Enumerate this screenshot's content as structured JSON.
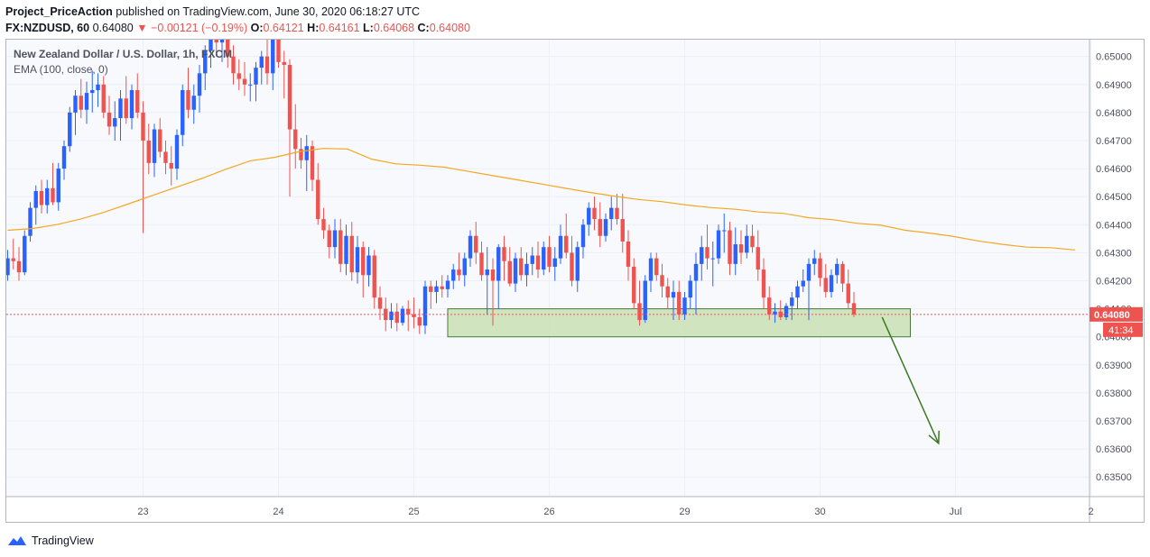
{
  "header": {
    "author": "Project_PriceAction",
    "published": "published on TradingView.com, June 30, 2020 06:18:27 UTC",
    "symbol": "FX:NZDUSD, 60",
    "last": "0.64080",
    "change": "−0.00121 (−0.19%)",
    "o_label": "O:",
    "o": "0.64121",
    "h_label": "H:",
    "h": "0.64161",
    "l_label": "L:",
    "l": "0.64068",
    "c_label": "C:",
    "c": "0.64080"
  },
  "legend": {
    "title": "New Zealand Dollar / U.S. Dollar, 1h, FXCM",
    "ema": "EMA (100, close, 0)"
  },
  "price_tag": "0.64080",
  "countdown_tag": "41:34",
  "footer": {
    "brand": "TradingView"
  },
  "colors": {
    "up": "#2962ff",
    "down": "#ef5350",
    "ema": "#f5a623",
    "zone_fill": "#c8e0b4",
    "zone_stroke": "#4a7a3a",
    "arrow": "#3a7a1e",
    "price_line": "#ef5350",
    "grid": "#f0f3fa"
  },
  "chart_data": {
    "type": "candlestick",
    "title": "New Zealand Dollar / U.S. Dollar, 1h, FXCM",
    "ylim": [
      0.6343,
      0.6506
    ],
    "y_ticks": [
      0.635,
      0.636,
      0.637,
      0.638,
      0.639,
      0.64,
      0.641,
      0.642,
      0.643,
      0.644,
      0.645,
      0.646,
      0.647,
      0.648,
      0.649,
      0.65
    ],
    "x_ticks": [
      {
        "label": "23",
        "bar": 24
      },
      {
        "label": "24",
        "bar": 48
      },
      {
        "label": "25",
        "bar": 72
      },
      {
        "label": "26",
        "bar": 96
      },
      {
        "label": "29",
        "bar": 120
      },
      {
        "label": "30",
        "bar": 144
      },
      {
        "label": "Jul",
        "bar": 168
      },
      {
        "label": "2",
        "bar": 192
      }
    ],
    "bar_count_visible": 193,
    "candles": [
      [
        0.6422,
        0.6431,
        0.642,
        0.6428
      ],
      [
        0.6428,
        0.6435,
        0.6424,
        0.6427
      ],
      [
        0.6427,
        0.6432,
        0.642,
        0.6423
      ],
      [
        0.6423,
        0.6438,
        0.6422,
        0.6436
      ],
      [
        0.6436,
        0.6448,
        0.6434,
        0.6446
      ],
      [
        0.6446,
        0.6454,
        0.644,
        0.6452
      ],
      [
        0.6452,
        0.6456,
        0.6444,
        0.6447
      ],
      [
        0.6447,
        0.6456,
        0.6444,
        0.6453
      ],
      [
        0.6453,
        0.6462,
        0.6447,
        0.6448
      ],
      [
        0.6448,
        0.6462,
        0.6445,
        0.646
      ],
      [
        0.646,
        0.647,
        0.6456,
        0.6468
      ],
      [
        0.6468,
        0.6482,
        0.6466,
        0.648
      ],
      [
        0.648,
        0.6488,
        0.6472,
        0.6486
      ],
      [
        0.6486,
        0.6492,
        0.6478,
        0.6481
      ],
      [
        0.6481,
        0.6491,
        0.6476,
        0.6487
      ],
      [
        0.6487,
        0.6495,
        0.648,
        0.6488
      ],
      [
        0.6488,
        0.6494,
        0.6482,
        0.649
      ],
      [
        0.649,
        0.6493,
        0.6478,
        0.648
      ],
      [
        0.648,
        0.6486,
        0.6472,
        0.6475
      ],
      [
        0.6475,
        0.6484,
        0.647,
        0.6478
      ],
      [
        0.6478,
        0.6488,
        0.647,
        0.6485
      ],
      [
        0.6485,
        0.6493,
        0.6476,
        0.6478
      ],
      [
        0.6478,
        0.649,
        0.6474,
        0.6488
      ],
      [
        0.6488,
        0.6494,
        0.6478,
        0.648
      ],
      [
        0.648,
        0.6484,
        0.6437,
        0.647
      ],
      [
        0.647,
        0.6476,
        0.6458,
        0.6462
      ],
      [
        0.6462,
        0.6476,
        0.6457,
        0.6474
      ],
      [
        0.6474,
        0.6478,
        0.6464,
        0.6466
      ],
      [
        0.6466,
        0.647,
        0.6458,
        0.6462
      ],
      [
        0.6462,
        0.6468,
        0.6454,
        0.646
      ],
      [
        0.646,
        0.6474,
        0.6456,
        0.6472
      ],
      [
        0.6472,
        0.649,
        0.6468,
        0.6488
      ],
      [
        0.6488,
        0.6496,
        0.6478,
        0.6481
      ],
      [
        0.6481,
        0.649,
        0.6476,
        0.6486
      ],
      [
        0.6486,
        0.6497,
        0.648,
        0.6494
      ],
      [
        0.6494,
        0.6504,
        0.6488,
        0.6502
      ],
      [
        0.6502,
        0.6512,
        0.6496,
        0.6508
      ],
      [
        0.6508,
        0.6514,
        0.65,
        0.6505
      ],
      [
        0.6505,
        0.6516,
        0.6498,
        0.6512
      ],
      [
        0.6512,
        0.6516,
        0.6496,
        0.65
      ],
      [
        0.65,
        0.6504,
        0.649,
        0.6494
      ],
      [
        0.6494,
        0.6499,
        0.6488,
        0.6492
      ],
      [
        0.6492,
        0.6498,
        0.6486,
        0.649
      ],
      [
        0.649,
        0.6494,
        0.6484,
        0.649
      ],
      [
        0.649,
        0.6498,
        0.6484,
        0.6496
      ],
      [
        0.6496,
        0.6502,
        0.649,
        0.65
      ],
      [
        0.65,
        0.6506,
        0.649,
        0.6494
      ],
      [
        0.6494,
        0.6508,
        0.6488,
        0.6506
      ],
      [
        0.6506,
        0.651,
        0.6496,
        0.6498
      ],
      [
        0.6498,
        0.6502,
        0.6485,
        0.6497
      ],
      [
        0.6497,
        0.6499,
        0.645,
        0.6474
      ],
      [
        0.6474,
        0.6483,
        0.646,
        0.6467
      ],
      [
        0.6467,
        0.6471,
        0.646,
        0.6463
      ],
      [
        0.6463,
        0.6472,
        0.6452,
        0.6468
      ],
      [
        0.6468,
        0.647,
        0.6452,
        0.6456
      ],
      [
        0.6456,
        0.6462,
        0.644,
        0.6442
      ],
      [
        0.6442,
        0.6446,
        0.6435,
        0.6438
      ],
      [
        0.6438,
        0.644,
        0.6428,
        0.6432
      ],
      [
        0.6432,
        0.6442,
        0.6428,
        0.6438
      ],
      [
        0.6438,
        0.6442,
        0.6423,
        0.6426
      ],
      [
        0.6426,
        0.644,
        0.6422,
        0.6436
      ],
      [
        0.6436,
        0.6441,
        0.642,
        0.6423
      ],
      [
        0.6423,
        0.6436,
        0.6419,
        0.6432
      ],
      [
        0.6432,
        0.6434,
        0.6414,
        0.6422
      ],
      [
        0.6422,
        0.6432,
        0.6418,
        0.6429
      ],
      [
        0.6429,
        0.6431,
        0.641,
        0.6414
      ],
      [
        0.6414,
        0.6418,
        0.6406,
        0.641
      ],
      [
        0.641,
        0.6414,
        0.6402,
        0.6406
      ],
      [
        0.6406,
        0.6412,
        0.6403,
        0.6409
      ],
      [
        0.6409,
        0.6412,
        0.6402,
        0.6405
      ],
      [
        0.6405,
        0.6411,
        0.6404,
        0.641
      ],
      [
        0.641,
        0.6413,
        0.6402,
        0.6408
      ],
      [
        0.6408,
        0.6414,
        0.6403,
        0.6407
      ],
      [
        0.6407,
        0.641,
        0.6401,
        0.6404
      ],
      [
        0.6404,
        0.642,
        0.6401,
        0.6418
      ],
      [
        0.6418,
        0.642,
        0.641,
        0.6416
      ],
      [
        0.6416,
        0.642,
        0.6412,
        0.6418
      ],
      [
        0.6418,
        0.6422,
        0.6414,
        0.6417
      ],
      [
        0.6417,
        0.6422,
        0.6414,
        0.642
      ],
      [
        0.642,
        0.6426,
        0.6417,
        0.6424
      ],
      [
        0.6424,
        0.643,
        0.642,
        0.6422
      ],
      [
        0.6422,
        0.643,
        0.6418,
        0.6428
      ],
      [
        0.6428,
        0.6438,
        0.6425,
        0.6436
      ],
      [
        0.6436,
        0.6441,
        0.6426,
        0.643
      ],
      [
        0.643,
        0.6434,
        0.642,
        0.6422
      ],
      [
        0.6422,
        0.6432,
        0.6408,
        0.6424
      ],
      [
        0.6424,
        0.6428,
        0.6404,
        0.642
      ],
      [
        0.642,
        0.6433,
        0.641,
        0.6432
      ],
      [
        0.6432,
        0.6436,
        0.642,
        0.6427
      ],
      [
        0.6427,
        0.6432,
        0.6418,
        0.6419
      ],
      [
        0.6419,
        0.643,
        0.6416,
        0.6428
      ],
      [
        0.6428,
        0.6432,
        0.642,
        0.6422
      ],
      [
        0.6422,
        0.643,
        0.6418,
        0.6426
      ],
      [
        0.6426,
        0.6432,
        0.6422,
        0.6429
      ],
      [
        0.6429,
        0.6434,
        0.6421,
        0.6424
      ],
      [
        0.6424,
        0.6434,
        0.6422,
        0.6432
      ],
      [
        0.6432,
        0.6436,
        0.6423,
        0.6425
      ],
      [
        0.6425,
        0.6432,
        0.642,
        0.6428
      ],
      [
        0.6428,
        0.644,
        0.6426,
        0.6436
      ],
      [
        0.6436,
        0.6444,
        0.6428,
        0.643
      ],
      [
        0.643,
        0.6436,
        0.6418,
        0.642
      ],
      [
        0.642,
        0.6434,
        0.6416,
        0.6432
      ],
      [
        0.6432,
        0.6442,
        0.6428,
        0.644
      ],
      [
        0.644,
        0.6448,
        0.6436,
        0.6446
      ],
      [
        0.6446,
        0.645,
        0.6438,
        0.6442
      ],
      [
        0.6442,
        0.6448,
        0.6432,
        0.6436
      ],
      [
        0.6436,
        0.6444,
        0.6434,
        0.6442
      ],
      [
        0.6442,
        0.645,
        0.6438,
        0.6446
      ],
      [
        0.6446,
        0.6451,
        0.644,
        0.6442
      ],
      [
        0.6442,
        0.6451,
        0.643,
        0.6434
      ],
      [
        0.6434,
        0.6438,
        0.642,
        0.6425
      ],
      [
        0.6425,
        0.6428,
        0.641,
        0.6412
      ],
      [
        0.6412,
        0.642,
        0.6404,
        0.6406
      ],
      [
        0.6406,
        0.6422,
        0.6405,
        0.642
      ],
      [
        0.642,
        0.643,
        0.6416,
        0.6428
      ],
      [
        0.6428,
        0.643,
        0.642,
        0.6422
      ],
      [
        0.6422,
        0.6426,
        0.6414,
        0.6418
      ],
      [
        0.6418,
        0.6421,
        0.641,
        0.6414
      ],
      [
        0.6414,
        0.642,
        0.6406,
        0.6416
      ],
      [
        0.6416,
        0.642,
        0.6406,
        0.6408
      ],
      [
        0.6408,
        0.6416,
        0.6406,
        0.6414
      ],
      [
        0.6414,
        0.6422,
        0.641,
        0.642
      ],
      [
        0.642,
        0.643,
        0.6408,
        0.6426
      ],
      [
        0.6426,
        0.6436,
        0.642,
        0.6432
      ],
      [
        0.6432,
        0.644,
        0.6424,
        0.6428
      ],
      [
        0.6428,
        0.6434,
        0.6418,
        0.6428
      ],
      [
        0.6428,
        0.644,
        0.6426,
        0.6438
      ],
      [
        0.6438,
        0.6444,
        0.643,
        0.6438
      ],
      [
        0.6438,
        0.6441,
        0.6422,
        0.6426
      ],
      [
        0.6426,
        0.6439,
        0.6422,
        0.6433
      ],
      [
        0.6433,
        0.6438,
        0.6426,
        0.643
      ],
      [
        0.643,
        0.644,
        0.6428,
        0.6436
      ],
      [
        0.6436,
        0.644,
        0.643,
        0.6432
      ],
      [
        0.6432,
        0.6438,
        0.642,
        0.6424
      ],
      [
        0.6424,
        0.6428,
        0.641,
        0.6414
      ],
      [
        0.6414,
        0.6418,
        0.6406,
        0.6408
      ],
      [
        0.6408,
        0.6412,
        0.6405,
        0.6409
      ],
      [
        0.6409,
        0.6413,
        0.6406,
        0.6407
      ],
      [
        0.6407,
        0.6412,
        0.6406,
        0.6411
      ],
      [
        0.6411,
        0.6416,
        0.6406,
        0.6414
      ],
      [
        0.6414,
        0.642,
        0.641,
        0.6418
      ],
      [
        0.6418,
        0.6424,
        0.6416,
        0.642
      ],
      [
        0.642,
        0.6428,
        0.6406,
        0.6426
      ],
      [
        0.6426,
        0.6431,
        0.6422,
        0.6428
      ],
      [
        0.6428,
        0.643,
        0.6418,
        0.6421
      ],
      [
        0.6421,
        0.6426,
        0.6414,
        0.6416
      ],
      [
        0.6416,
        0.6424,
        0.6414,
        0.6422
      ],
      [
        0.6422,
        0.6428,
        0.6419,
        0.6426
      ],
      [
        0.6426,
        0.6427,
        0.6416,
        0.6419
      ],
      [
        0.6419,
        0.6424,
        0.641,
        0.6412
      ],
      [
        0.6412,
        0.6416,
        0.6407,
        0.6408
      ]
    ],
    "ema": {
      "name": "EMA (100, close, 0)",
      "start_bar": 0,
      "values": [
        0.6438,
        0.64386,
        0.644,
        0.6442,
        0.64445,
        0.64475,
        0.64505,
        0.64535,
        0.64565,
        0.64598,
        0.64628,
        0.6464,
        0.6466,
        0.64672,
        0.6467,
        0.64634,
        0.64617,
        0.64612,
        0.64605,
        0.6459,
        0.64575,
        0.6456,
        0.64545,
        0.6453,
        0.64515,
        0.64502,
        0.6449,
        0.64482,
        0.6447,
        0.64461,
        0.64455,
        0.64445,
        0.6444,
        0.64425,
        0.64418,
        0.64405,
        0.64398,
        0.6438,
        0.6437,
        0.64358,
        0.64342,
        0.6433,
        0.6432,
        0.64318,
        0.6431
      ],
      "bar_step": 4.3
    },
    "support_zone": {
      "start_bar": 78,
      "end_bar": 160,
      "low": 0.64,
      "high": 0.641
    },
    "arrow": {
      "from_bar": 155,
      "from_price": 0.6407,
      "to_bar": 165,
      "to_price": 0.6362
    },
    "last_price": 0.6408
  }
}
